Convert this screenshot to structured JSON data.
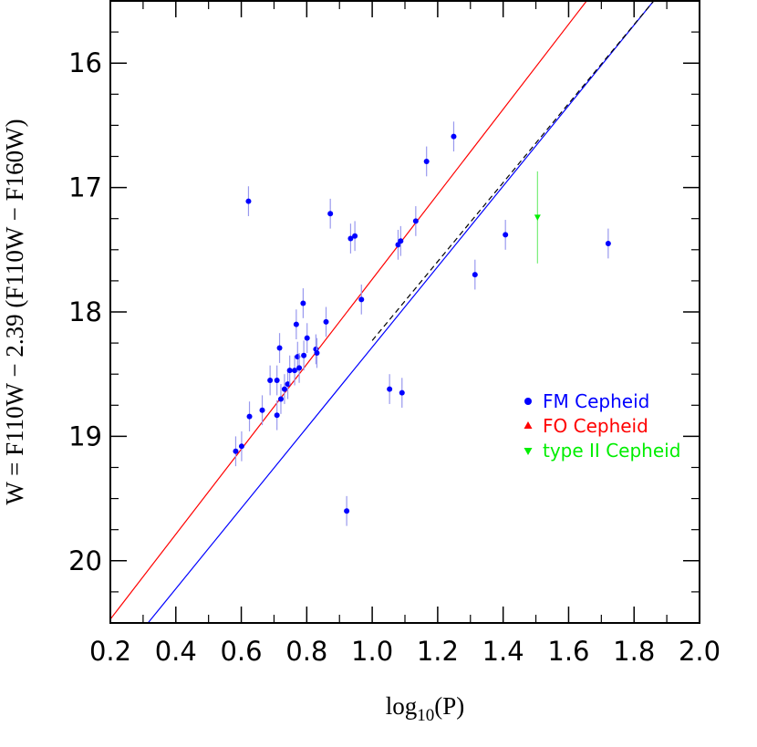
{
  "chart_data": {
    "type": "scatter",
    "xlabel": "log₁₀(P)",
    "xlabel_parts": {
      "base": "log",
      "sub": "10",
      "arg": "(P)"
    },
    "ylabel": "W = F110W − 2.39 (F110W − F160W)",
    "xlim": [
      0.2,
      2.0
    ],
    "ylim": [
      20.5,
      15.5
    ],
    "y_inverted": true,
    "grid": false,
    "legend_position": "right-middle",
    "x_ticks": [
      {
        "value": 0.2,
        "label": "0.2"
      },
      {
        "value": 0.4,
        "label": "0.4"
      },
      {
        "value": 0.6,
        "label": "0.6"
      },
      {
        "value": 0.8,
        "label": "0.8"
      },
      {
        "value": 1.0,
        "label": "1.0"
      },
      {
        "value": 1.2,
        "label": "1.2"
      },
      {
        "value": 1.4,
        "label": "1.4"
      },
      {
        "value": 1.6,
        "label": "1.6"
      },
      {
        "value": 1.8,
        "label": "1.8"
      },
      {
        "value": 2.0,
        "label": "2.0"
      }
    ],
    "y_ticks": [
      {
        "value": 16,
        "label": "16"
      },
      {
        "value": 17,
        "label": "17"
      },
      {
        "value": 18,
        "label": "18"
      },
      {
        "value": 19,
        "label": "19"
      },
      {
        "value": 20,
        "label": "20"
      }
    ],
    "legend": [
      {
        "label": "FM Cepheid",
        "color": "#0000ff",
        "marker": "circle"
      },
      {
        "label": "FO Cepheid",
        "color": "#ff0000",
        "marker": "triangle-up"
      },
      {
        "label": "type II Cepheid",
        "color": "#00ee00",
        "marker": "triangle-down"
      }
    ],
    "series": [
      {
        "name": "FM Cepheid",
        "color": "#0000ff",
        "errcolor": "#9999ee",
        "marker": "circle",
        "points": [
          {
            "x": 0.583,
            "y": 19.12,
            "err": 0.12
          },
          {
            "x": 0.601,
            "y": 19.08,
            "err": 0.12
          },
          {
            "x": 0.622,
            "y": 17.11,
            "err": 0.12
          },
          {
            "x": 0.625,
            "y": 18.84,
            "err": 0.12
          },
          {
            "x": 0.664,
            "y": 18.79,
            "err": 0.12
          },
          {
            "x": 0.688,
            "y": 18.55,
            "err": 0.12
          },
          {
            "x": 0.709,
            "y": 18.55,
            "err": 0.12
          },
          {
            "x": 0.709,
            "y": 18.83,
            "err": 0.12
          },
          {
            "x": 0.717,
            "y": 18.29,
            "err": 0.12
          },
          {
            "x": 0.721,
            "y": 18.7,
            "err": 0.12
          },
          {
            "x": 0.732,
            "y": 18.62,
            "err": 0.12
          },
          {
            "x": 0.742,
            "y": 18.58,
            "err": 0.12
          },
          {
            "x": 0.748,
            "y": 18.47,
            "err": 0.12
          },
          {
            "x": 0.763,
            "y": 18.47,
            "err": 0.12
          },
          {
            "x": 0.768,
            "y": 18.1,
            "err": 0.12
          },
          {
            "x": 0.772,
            "y": 18.36,
            "err": 0.12
          },
          {
            "x": 0.777,
            "y": 18.45,
            "err": 0.12
          },
          {
            "x": 0.789,
            "y": 17.93,
            "err": 0.12
          },
          {
            "x": 0.791,
            "y": 18.35,
            "err": 0.12
          },
          {
            "x": 0.801,
            "y": 18.21,
            "err": 0.12
          },
          {
            "x": 0.828,
            "y": 18.3,
            "err": 0.12
          },
          {
            "x": 0.831,
            "y": 18.33,
            "err": 0.12
          },
          {
            "x": 0.859,
            "y": 18.08,
            "err": 0.12
          },
          {
            "x": 0.872,
            "y": 17.21,
            "err": 0.12
          },
          {
            "x": 0.922,
            "y": 19.6,
            "err": 0.12
          },
          {
            "x": 0.934,
            "y": 17.41,
            "err": 0.12
          },
          {
            "x": 0.947,
            "y": 17.39,
            "err": 0.12
          },
          {
            "x": 0.967,
            "y": 17.9,
            "err": 0.12
          },
          {
            "x": 1.053,
            "y": 18.62,
            "err": 0.12
          },
          {
            "x": 1.079,
            "y": 17.46,
            "err": 0.12
          },
          {
            "x": 1.087,
            "y": 17.43,
            "err": 0.12
          },
          {
            "x": 1.091,
            "y": 18.65,
            "err": 0.12
          },
          {
            "x": 1.133,
            "y": 17.27,
            "err": 0.12
          },
          {
            "x": 1.166,
            "y": 16.79,
            "err": 0.12
          },
          {
            "x": 1.249,
            "y": 16.59,
            "err": 0.12
          },
          {
            "x": 1.314,
            "y": 17.7,
            "err": 0.12
          },
          {
            "x": 1.407,
            "y": 17.38,
            "err": 0.12
          },
          {
            "x": 1.721,
            "y": 17.45,
            "err": 0.12
          }
        ]
      },
      {
        "name": "type II Cepheid",
        "color": "#00ee00",
        "errcolor": "#77ee77",
        "marker": "triangle-down",
        "points": [
          {
            "x": 1.505,
            "y": 17.24,
            "err": 0.37
          }
        ]
      }
    ],
    "lines": [
      {
        "color": "#ff0000",
        "dash": false,
        "x": [
          0.2,
          1.655
        ],
        "y": [
          20.47,
          15.5
        ]
      },
      {
        "color": "#0000ff",
        "dash": false,
        "x": [
          0.315,
          1.86
        ],
        "y": [
          20.5,
          15.5
        ]
      },
      {
        "color": "#000000",
        "dash": true,
        "x": [
          1.0,
          1.86
        ],
        "y": [
          18.23,
          15.5
        ]
      }
    ]
  }
}
